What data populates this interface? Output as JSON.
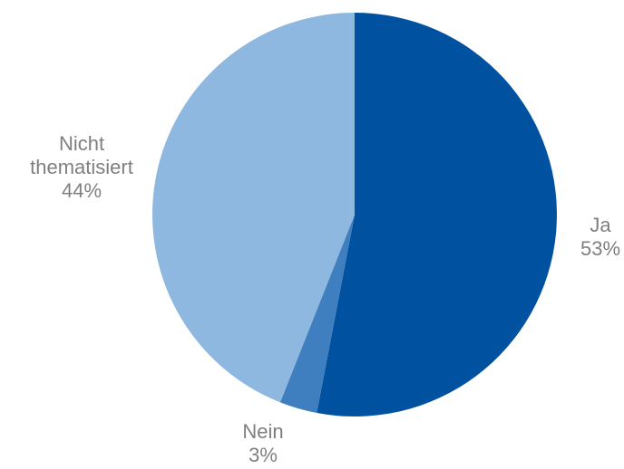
{
  "chart_data": {
    "type": "pie",
    "slices": [
      {
        "label": "Ja",
        "value": 53,
        "value_label": "53%",
        "color": "#0052a0"
      },
      {
        "label": "Nein",
        "value": 3,
        "value_label": "3%",
        "color": "#3f7fbf"
      },
      {
        "label": "Nicht thematisiert",
        "value": 44,
        "value_label": "44%",
        "color": "#8fb8e0"
      }
    ],
    "start_angle": "12 o'clock, clockwise",
    "legend": "none"
  }
}
